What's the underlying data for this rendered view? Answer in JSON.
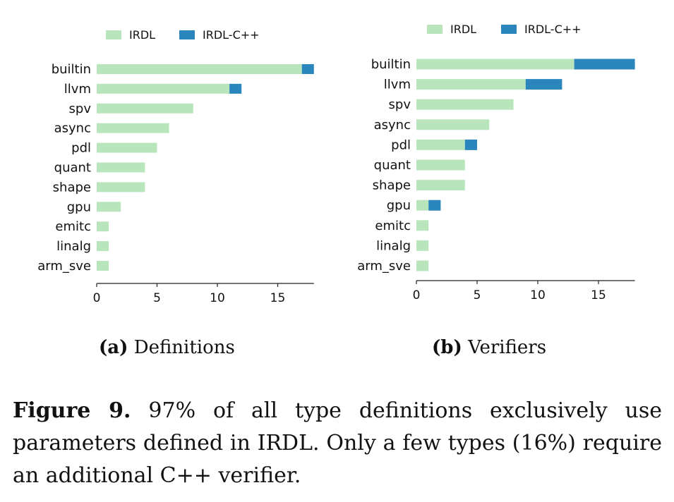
{
  "colors": {
    "irdl": "#b9e5bd",
    "irdl_cpp": "#2b86be"
  },
  "chart_data": [
    {
      "type": "bar",
      "orientation": "horizontal",
      "stacked": true,
      "categories": [
        "builtin",
        "llvm",
        "spv",
        "async",
        "pdl",
        "quant",
        "shape",
        "gpu",
        "emitc",
        "linalg",
        "arm_sve"
      ],
      "series": [
        {
          "name": "IRDL",
          "values": [
            17,
            11,
            8,
            6,
            5,
            4,
            4,
            2,
            1,
            1,
            1
          ]
        },
        {
          "name": "IRDL-C++",
          "values": [
            1,
            1,
            0,
            0,
            0,
            0,
            0,
            0,
            0,
            0,
            0
          ]
        }
      ],
      "xticks": [
        0,
        5,
        10,
        15
      ],
      "xlim": [
        0,
        18
      ],
      "legend": "top",
      "grid": false,
      "caption_label": "(a)",
      "caption_text": "Definitions"
    },
    {
      "type": "bar",
      "orientation": "horizontal",
      "stacked": true,
      "categories": [
        "builtin",
        "llvm",
        "spv",
        "async",
        "pdl",
        "quant",
        "shape",
        "gpu",
        "emitc",
        "linalg",
        "arm_sve"
      ],
      "series": [
        {
          "name": "IRDL",
          "values": [
            13,
            9,
            8,
            6,
            4,
            4,
            4,
            1,
            1,
            1,
            1
          ]
        },
        {
          "name": "IRDL-C++",
          "values": [
            5,
            3,
            0,
            0,
            1,
            0,
            0,
            1,
            0,
            0,
            0
          ]
        }
      ],
      "xticks": [
        0,
        5,
        10,
        15
      ],
      "xlim": [
        0,
        18
      ],
      "legend": "top",
      "grid": false,
      "caption_label": "(b)",
      "caption_text": "Verifiers"
    }
  ],
  "figure_caption": {
    "label": "Figure 9.",
    "text": "97% of all type definitions exclusively use parameters defined in IRDL. Only a few types (16%) require an additional C++ verifier."
  }
}
